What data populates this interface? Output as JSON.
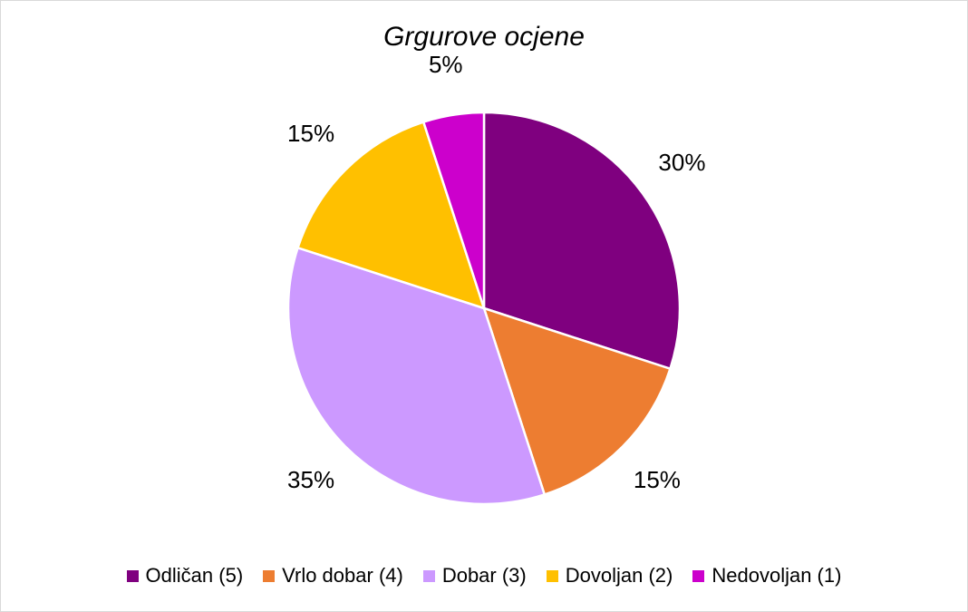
{
  "chart_data": {
    "type": "pie",
    "title": "Grgurove ocjene",
    "slices": [
      {
        "label": "Odličan (5)",
        "value": 30,
        "display": "30%",
        "color": "#7f007f"
      },
      {
        "label": "Vrlo dobar (4)",
        "value": 15,
        "display": "15%",
        "color": "#ed7d31"
      },
      {
        "label": "Dobar (3)",
        "value": 35,
        "display": "35%",
        "color": "#cc99ff"
      },
      {
        "label": "Dovoljan (2)",
        "value": 15,
        "display": "15%",
        "color": "#ffc000"
      },
      {
        "label": "Nedovoljan (1)",
        "value": 5,
        "display": "5%",
        "color": "#cc00cc"
      }
    ],
    "legend_position": "bottom"
  }
}
